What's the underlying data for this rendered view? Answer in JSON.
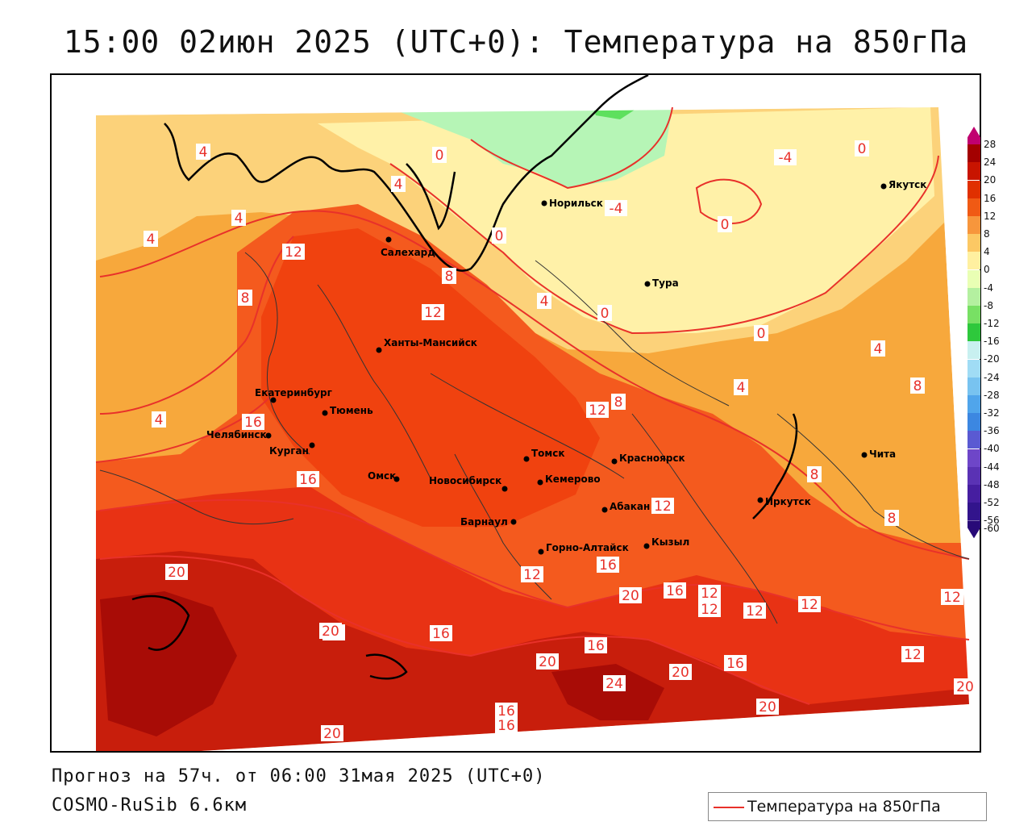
{
  "title": "15:00 02июн 2025 (UTC+0): Температура на 850гПа",
  "footer": {
    "forecast": "Прогноз на 57ч. от 06:00 31мая 2025 (UTC+0)",
    "model": "COSMO-RuSib 6.6км"
  },
  "legend": {
    "label": "Температура на 850гПа",
    "line_color": "#e8312a"
  },
  "colors": {
    "pale_yellow": "#fff7b0",
    "light_orange": "#fcd27a",
    "orange": "#f7a83c",
    "red_orange": "#f45a1e",
    "red": "#e83214",
    "dark_red": "#c81e0c",
    "deep_red": "#a80c06",
    "light_green": "#b6f5b6",
    "green": "#5ee05e"
  },
  "scale": [
    {
      "label": "28",
      "color": "#c0006f"
    },
    {
      "label": "24",
      "color": "#a30000"
    },
    {
      "label": "20",
      "color": "#c81400"
    },
    {
      "label": "16",
      "color": "#e03000"
    },
    {
      "label": "12",
      "color": "#f05a14"
    },
    {
      "label": "8",
      "color": "#f7963c"
    },
    {
      "label": "4",
      "color": "#fcc864"
    },
    {
      "label": "0",
      "color": "#fff0a0"
    },
    {
      "label": "-4",
      "color": "#e9ffb4"
    },
    {
      "label": "-8",
      "color": "#b4f0a0"
    },
    {
      "label": "-12",
      "color": "#78e064"
    },
    {
      "label": "-16",
      "color": "#2ec83c"
    },
    {
      "label": "-20",
      "color": "#c8f0f0"
    },
    {
      "label": "-24",
      "color": "#a0dcf5"
    },
    {
      "label": "-28",
      "color": "#78c3f0"
    },
    {
      "label": "-32",
      "color": "#50a5eb"
    },
    {
      "label": "-36",
      "color": "#3c87e1"
    },
    {
      "label": "-40",
      "color": "#5a5ad2"
    },
    {
      "label": "-44",
      "color": "#6e46c8"
    },
    {
      "label": "-48",
      "color": "#5a32b4"
    },
    {
      "label": "-52",
      "color": "#461ea0"
    },
    {
      "label": "-56",
      "color": "#32148c"
    },
    {
      "label": "-60",
      "color": "#280a78"
    }
  ],
  "cities": [
    {
      "name": "Норильск"
    },
    {
      "name": "Якутск"
    },
    {
      "name": "Салехард"
    },
    {
      "name": "Тура"
    },
    {
      "name": "Ханты-Мансийск"
    },
    {
      "name": "Екатеринбург"
    },
    {
      "name": "Тюмень"
    },
    {
      "name": "Челябинск"
    },
    {
      "name": "Курган"
    },
    {
      "name": "Омск"
    },
    {
      "name": "Новосибирск"
    },
    {
      "name": "Томск"
    },
    {
      "name": "Кемерово"
    },
    {
      "name": "Красноярск"
    },
    {
      "name": "Абакан"
    },
    {
      "name": "Барнаул"
    },
    {
      "name": "Горно-Алтайск"
    },
    {
      "name": "Кызыл"
    },
    {
      "name": "Иркутск"
    },
    {
      "name": "Чита"
    }
  ],
  "isolines": [
    "4",
    "4",
    "4",
    "0",
    "4",
    "0",
    "-4",
    "0",
    "-4",
    "0",
    "12",
    "8",
    "8",
    "0",
    "12",
    "4",
    "0",
    "4",
    "8",
    "4",
    "12",
    "8",
    "4",
    "16",
    "8",
    "12",
    "16",
    "8",
    "20",
    "12",
    "16",
    "20",
    "16",
    "12",
    "12",
    "12",
    "16",
    "12",
    "12",
    "20",
    "16",
    "20",
    "16",
    "20",
    "24",
    "16",
    "16",
    "20",
    "12",
    "20",
    "16",
    "20"
  ]
}
